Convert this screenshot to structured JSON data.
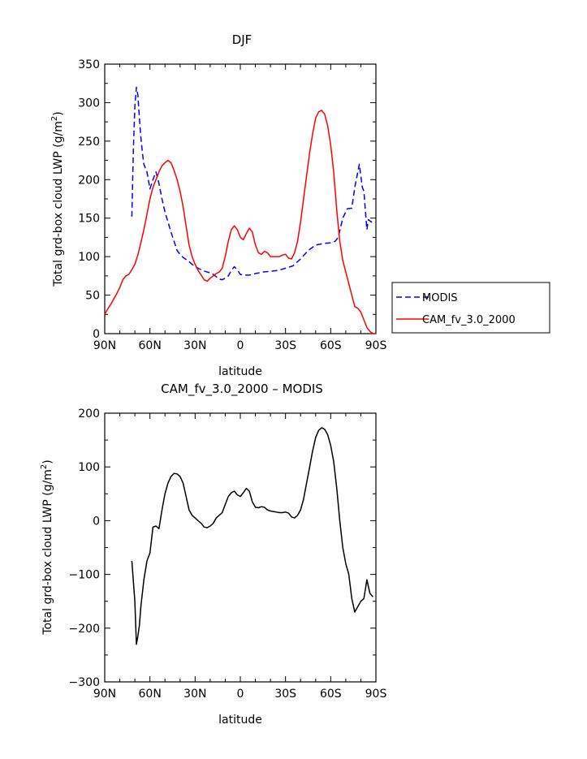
{
  "chart_data": [
    {
      "type": "line",
      "title": "DJF",
      "xlabel": "latitude",
      "ylabel": "Total grd-box cloud LWP (g/m",
      "ylabel_sup": "2",
      "ylabel_tail": ")",
      "xlim": [
        -90,
        90
      ],
      "ylim": [
        0,
        350
      ],
      "xtick_values": [
        -90,
        -60,
        -30,
        0,
        30,
        60,
        90
      ],
      "xtick_labels": [
        "90N",
        "60N",
        "30N",
        "0",
        "30S",
        "60S",
        "90S"
      ],
      "ytick_values": [
        0,
        50,
        100,
        150,
        200,
        250,
        300,
        350
      ],
      "ytick_labels": [
        "0",
        "50",
        "100",
        "150",
        "200",
        "250",
        "300",
        "350"
      ],
      "legend": {
        "placement": "outside-right"
      },
      "series": [
        {
          "name": "MODIS",
          "color": "#0000ff",
          "dash": true,
          "x": [
            -72,
            -71,
            -70,
            -69,
            -68,
            -67,
            -66,
            -65,
            -64,
            -63,
            -62,
            -60,
            -58,
            -56,
            -54,
            -52,
            -50,
            -48,
            -46,
            -44,
            -42,
            -40,
            -38,
            -35,
            -32,
            -30,
            -28,
            -25,
            -22,
            -20,
            -18,
            -16,
            -14,
            -12,
            -10,
            -8,
            -6,
            -4,
            -2,
            0,
            2,
            4,
            6,
            8,
            10,
            15,
            20,
            25,
            30,
            35,
            40,
            45,
            50,
            55,
            60,
            63,
            65,
            68,
            71,
            74,
            76,
            78,
            79,
            80,
            81,
            82,
            83,
            84,
            85,
            87,
            88
          ],
          "y": [
            152,
            240,
            295,
            320,
            310,
            280,
            255,
            235,
            220,
            215,
            210,
            188,
            200,
            210,
            195,
            175,
            158,
            145,
            132,
            120,
            108,
            103,
            99,
            95,
            90,
            87,
            85,
            82,
            80,
            79,
            77,
            74,
            71,
            70,
            72,
            75,
            82,
            87,
            83,
            77,
            76,
            76,
            76,
            77,
            78,
            80,
            81,
            82,
            85,
            88,
            97,
            108,
            115,
            117,
            118,
            120,
            125,
            150,
            162,
            163,
            190,
            210,
            220,
            205,
            190,
            185,
            160,
            135,
            148,
            145,
            148
          ]
        },
        {
          "name": "CAM_fv_3.0_2000",
          "color": "#ff0000",
          "dash": false,
          "x": [
            -90,
            -88,
            -86,
            -84,
            -82,
            -80,
            -78,
            -76,
            -74,
            -72,
            -70,
            -68,
            -66,
            -64,
            -62,
            -60,
            -58,
            -56,
            -54,
            -52,
            -50,
            -48,
            -46,
            -44,
            -42,
            -40,
            -38,
            -36,
            -34,
            -32,
            -30,
            -28,
            -26,
            -24,
            -22,
            -20,
            -18,
            -16,
            -14,
            -12,
            -10,
            -8,
            -6,
            -4,
            -2,
            0,
            2,
            4,
            6,
            8,
            10,
            12,
            14,
            16,
            18,
            20,
            22,
            24,
            26,
            28,
            30,
            32,
            34,
            36,
            38,
            40,
            42,
            44,
            46,
            48,
            50,
            52,
            54,
            56,
            58,
            60,
            62,
            64,
            66,
            68,
            70,
            72,
            74,
            76,
            78,
            80,
            82,
            84,
            86,
            88,
            90
          ],
          "y": [
            25,
            32,
            38,
            45,
            52,
            60,
            70,
            75,
            77,
            83,
            90,
            102,
            118,
            135,
            155,
            175,
            190,
            200,
            210,
            218,
            222,
            225,
            222,
            212,
            200,
            185,
            165,
            140,
            115,
            100,
            90,
            82,
            76,
            70,
            68,
            72,
            75,
            78,
            80,
            85,
            100,
            120,
            135,
            140,
            135,
            125,
            122,
            130,
            137,
            132,
            115,
            105,
            103,
            107,
            105,
            100,
            100,
            100,
            100,
            102,
            103,
            98,
            97,
            105,
            120,
            145,
            175,
            205,
            235,
            260,
            280,
            288,
            290,
            285,
            270,
            245,
            210,
            160,
            120,
            95,
            80,
            65,
            50,
            35,
            33,
            28,
            18,
            8,
            3,
            0,
            0
          ]
        }
      ]
    },
    {
      "type": "line",
      "title": "CAM_fv_3.0_2000 – MODIS",
      "xlabel": "latitude",
      "ylabel": "Total grd-box cloud LWP (g/m",
      "ylabel_sup": "2",
      "ylabel_tail": ")",
      "xlim": [
        -90,
        90
      ],
      "ylim": [
        -300,
        200
      ],
      "xtick_values": [
        -90,
        -60,
        -30,
        0,
        30,
        60,
        90
      ],
      "xtick_labels": [
        "90N",
        "60N",
        "30N",
        "0",
        "30S",
        "60S",
        "90S"
      ],
      "ytick_values": [
        -300,
        -200,
        -100,
        0,
        100,
        200
      ],
      "ytick_labels": [
        "−300",
        "−200",
        "−100",
        "0",
        "100",
        "200"
      ],
      "series": [
        {
          "color": "#000000",
          "dash": false,
          "x": [
            -72,
            -70,
            -69,
            -68,
            -67,
            -66,
            -64,
            -62,
            -60,
            -58,
            -56,
            -54,
            -52,
            -50,
            -48,
            -46,
            -44,
            -42,
            -40,
            -38,
            -36,
            -34,
            -32,
            -30,
            -28,
            -26,
            -24,
            -22,
            -20,
            -18,
            -16,
            -14,
            -12,
            -10,
            -8,
            -6,
            -4,
            -2,
            0,
            2,
            4,
            6,
            8,
            10,
            12,
            14,
            16,
            18,
            20,
            22,
            24,
            26,
            28,
            30,
            32,
            34,
            36,
            38,
            40,
            42,
            44,
            46,
            48,
            50,
            52,
            54,
            56,
            58,
            60,
            62,
            64,
            66,
            68,
            70,
            72,
            74,
            76,
            78,
            79,
            80,
            82,
            84,
            86,
            88
          ],
          "y": [
            -75,
            -150,
            -230,
            -215,
            -195,
            -160,
            -110,
            -75,
            -60,
            -12,
            -10,
            -15,
            20,
            50,
            70,
            82,
            88,
            87,
            82,
            70,
            45,
            20,
            10,
            5,
            0,
            -5,
            -12,
            -13,
            -10,
            -5,
            5,
            10,
            15,
            30,
            45,
            52,
            55,
            48,
            45,
            52,
            60,
            55,
            35,
            25,
            24,
            26,
            25,
            20,
            18,
            17,
            16,
            15,
            15,
            16,
            14,
            7,
            5,
            10,
            20,
            40,
            70,
            100,
            130,
            155,
            168,
            173,
            170,
            160,
            140,
            110,
            60,
            0,
            -50,
            -80,
            -100,
            -145,
            -170,
            -160,
            -155,
            -150,
            -145,
            -110,
            -135,
            -142
          ]
        }
      ]
    }
  ]
}
